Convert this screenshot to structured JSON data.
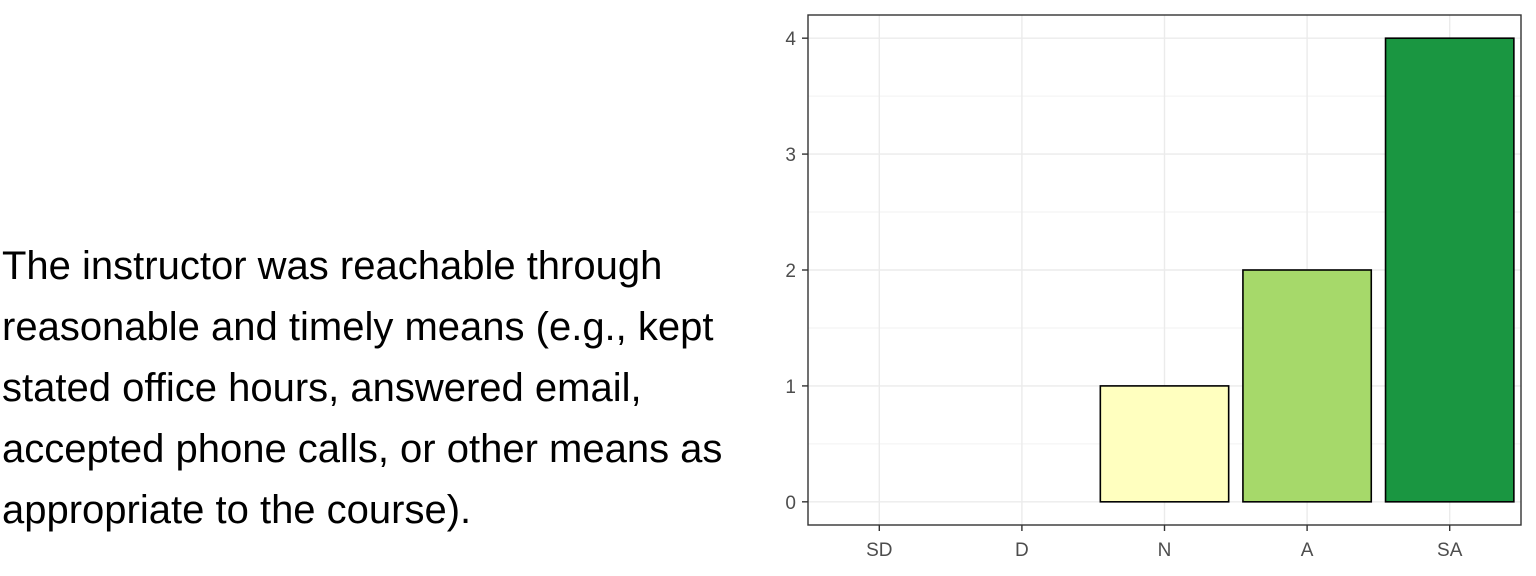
{
  "question": {
    "lines": [
      "The instructor was reachable through",
      "reasonable and timely means (e.g., kept",
      "stated office hours, answered email,",
      "accepted phone calls, or other means as",
      "appropriate to the course)."
    ]
  },
  "chart_data": {
    "type": "bar",
    "categories": [
      "SD",
      "D",
      "N",
      "A",
      "SA"
    ],
    "values": [
      0,
      0,
      1,
      2,
      4
    ],
    "colors": [
      "#a50026",
      "#f46d43",
      "#ffffbf",
      "#a6d96a",
      "#1a9641"
    ],
    "yticks": [
      0,
      1,
      2,
      3,
      4
    ],
    "ylim": [
      -0.2,
      4.2
    ],
    "grid": true,
    "title": "",
    "xlabel": "",
    "ylabel": ""
  }
}
